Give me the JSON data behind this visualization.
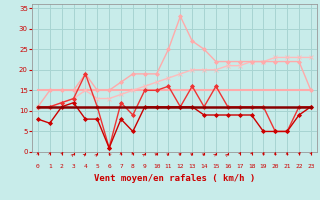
{
  "background_color": "#c8ecea",
  "grid_color": "#a8d4d2",
  "xlabel": "Vent moyen/en rafales ( km/h )",
  "xlabel_color": "#cc0000",
  "xlim": [
    -0.5,
    23.5
  ],
  "ylim": [
    0,
    36
  ],
  "yticks": [
    0,
    5,
    10,
    15,
    20,
    25,
    30,
    35
  ],
  "xtick_labels": [
    "0",
    "1",
    "2",
    "3",
    "4",
    "5",
    "6",
    "7",
    "8",
    "9",
    "10",
    "11",
    "12",
    "13",
    "14",
    "15",
    "16",
    "17",
    "18",
    "19",
    "20",
    "21",
    "22",
    "23"
  ],
  "series": [
    {
      "x": [
        0,
        1,
        2,
        3,
        4,
        5,
        6,
        7,
        8,
        9,
        10,
        11,
        12,
        13,
        14,
        15,
        16,
        17,
        18,
        19,
        20,
        21,
        22,
        23
      ],
      "y": [
        11,
        11,
        11,
        11,
        11,
        11,
        11,
        11,
        11,
        11,
        11,
        11,
        11,
        11,
        11,
        11,
        11,
        11,
        11,
        11,
        11,
        11,
        11,
        11
      ],
      "color": "#880000",
      "lw": 1.8,
      "marker": null,
      "zorder": 6
    },
    {
      "x": [
        0,
        1,
        2,
        3,
        4,
        5,
        6,
        7,
        8,
        9,
        10,
        11,
        12,
        13,
        14,
        15,
        16,
        17,
        18,
        19,
        20,
        21,
        22,
        23
      ],
      "y": [
        8,
        7,
        11,
        12,
        8,
        8,
        1,
        8,
        5,
        11,
        11,
        11,
        11,
        11,
        9,
        9,
        9,
        9,
        9,
        5,
        5,
        5,
        9,
        11
      ],
      "color": "#cc0000",
      "lw": 1.0,
      "marker": "D",
      "ms": 2,
      "zorder": 5
    },
    {
      "x": [
        0,
        1,
        2,
        3,
        4,
        5,
        6,
        7,
        8,
        9,
        10,
        11,
        12,
        13,
        14,
        15,
        16,
        17,
        18,
        19,
        20,
        21,
        22,
        23
      ],
      "y": [
        11,
        11,
        12,
        13,
        19,
        11,
        1,
        12,
        9,
        15,
        15,
        16,
        11,
        16,
        11,
        16,
        11,
        11,
        11,
        11,
        5,
        5,
        11,
        11
      ],
      "color": "#ee3333",
      "lw": 1.0,
      "marker": "D",
      "ms": 2,
      "zorder": 4
    },
    {
      "x": [
        0,
        1,
        2,
        3,
        4,
        5,
        6,
        7,
        8,
        9,
        10,
        11,
        12,
        13,
        14,
        15,
        16,
        17,
        18,
        19,
        20,
        21,
        22,
        23
      ],
      "y": [
        15,
        15,
        15,
        15,
        15,
        15,
        15,
        15,
        15,
        15,
        15,
        15,
        15,
        15,
        15,
        15,
        15,
        15,
        15,
        15,
        15,
        15,
        15,
        15
      ],
      "color": "#ffaaaa",
      "lw": 1.5,
      "marker": null,
      "zorder": 2
    },
    {
      "x": [
        0,
        1,
        2,
        3,
        4,
        5,
        6,
        7,
        8,
        9,
        10,
        11,
        12,
        13,
        14,
        15,
        16,
        17,
        18,
        19,
        20,
        21,
        22,
        23
      ],
      "y": [
        11,
        15,
        15,
        15,
        19,
        15,
        15,
        17,
        19,
        19,
        19,
        25,
        33,
        27,
        25,
        22,
        22,
        22,
        22,
        22,
        22,
        22,
        22,
        15
      ],
      "color": "#ffaaaa",
      "lw": 1.0,
      "marker": "D",
      "ms": 2,
      "zorder": 3
    },
    {
      "x": [
        0,
        1,
        2,
        3,
        4,
        5,
        6,
        7,
        8,
        9,
        10,
        11,
        12,
        13,
        14,
        15,
        16,
        17,
        18,
        19,
        20,
        21,
        22,
        23
      ],
      "y": [
        11,
        11,
        12,
        13,
        15,
        13,
        13,
        14,
        15,
        16,
        17,
        18,
        19,
        20,
        20,
        20,
        21,
        21,
        22,
        22,
        23,
        23,
        23,
        23
      ],
      "color": "#ffbbbb",
      "lw": 1.0,
      "marker": "x",
      "ms": 3,
      "zorder": 2
    }
  ],
  "arrow_angles_deg": [
    180,
    175,
    165,
    160,
    155,
    160,
    210,
    180,
    190,
    155,
    145,
    148,
    142,
    145,
    148,
    155,
    160,
    168,
    170,
    173,
    180,
    180,
    165,
    168
  ]
}
